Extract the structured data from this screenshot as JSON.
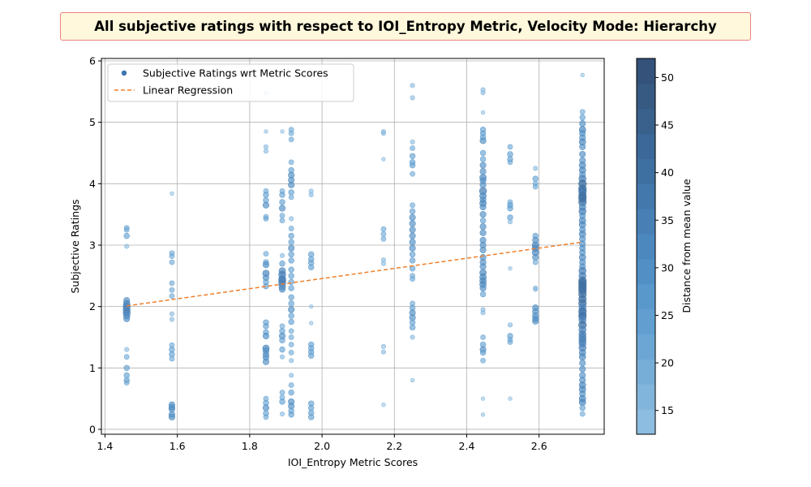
{
  "chart_data": {
    "type": "scatter",
    "title": "All subjective ratings with respect to IOI_Entropy Metric, Velocity Mode: Hierarchy",
    "xlabel": "IOI_Entropy Metric Scores",
    "ylabel": "Subjective Ratings",
    "xlim": [
      1.39,
      2.78
    ],
    "ylim": [
      -0.08,
      6.04
    ],
    "xticks": [
      1.4,
      1.6,
      1.8,
      2.0,
      2.2,
      2.4,
      2.6
    ],
    "xtick_labels": [
      "1.4",
      "1.6",
      "1.8",
      "2.0",
      "2.2",
      "2.4",
      "2.6"
    ],
    "yticks": [
      0,
      1,
      2,
      3,
      4,
      5,
      6
    ],
    "ytick_labels": [
      "0",
      "1",
      "2",
      "3",
      "4",
      "5",
      "6"
    ],
    "grid": true,
    "legend": {
      "placement": "top-left",
      "entries": [
        {
          "label": "Subjective Ratings wrt Metric Scores",
          "marker": "point",
          "color": "#3b75af"
        },
        {
          "label": "Linear Regression",
          "marker": "dashed-line",
          "color": "#f07f2a"
        }
      ]
    },
    "colorbar": {
      "label": "Distance from mean value",
      "range": [
        12.5,
        52
      ],
      "ticks": [
        15,
        20,
        25,
        30,
        35,
        40,
        45,
        50
      ],
      "tick_labels": [
        "15",
        "20",
        "25",
        "30",
        "35",
        "40",
        "45",
        "50"
      ],
      "colors": [
        "#8dbde0",
        "#82b5dc",
        "#77aed8",
        "#6ca6d4",
        "#629fd0",
        "#5998cb",
        "#528fc4",
        "#4c88be",
        "#4880b6",
        "#4378ac",
        "#3f70a2",
        "#3b6898",
        "#39618c",
        "#365a82",
        "#34527a"
      ]
    },
    "regression": {
      "x": [
        1.46,
        2.72
      ],
      "y": [
        2.01,
        3.05
      ],
      "color": "#f07f2a"
    },
    "series": [
      {
        "name": "Subjective Ratings wrt Metric Scores",
        "x_groups": [
          {
            "x": 1.46,
            "y": [
              3.28,
              3.25,
              3.15,
              2.98,
              2.1,
              2.05,
              2.0,
              1.95,
              1.9,
              1.85,
              1.8,
              1.3,
              1.18,
              1.0,
              0.88,
              0.8,
              0.76
            ]
          },
          {
            "x": 1.585,
            "y": [
              3.84,
              2.87,
              2.82,
              2.72,
              2.38,
              2.27,
              2.17,
              1.88,
              1.79,
              1.37,
              1.3,
              1.22,
              1.15,
              0.4,
              0.36,
              0.33,
              0.24,
              0.2
            ]
          },
          {
            "x": 1.845,
            "y": [
              5.48,
              4.85,
              4.6,
              4.53,
              3.88,
              3.82,
              3.73,
              3.65,
              3.46,
              3.43,
              2.86,
              2.72,
              2.68,
              2.54,
              2.47,
              2.4,
              2.33,
              1.74,
              1.68,
              1.58,
              1.52,
              1.32,
              1.28,
              1.22,
              1.17,
              1.1,
              0.5,
              0.43,
              0.35,
              0.26,
              0.2
            ]
          },
          {
            "x": 1.89,
            "y": [
              4.85,
              3.88,
              3.82,
              3.7,
              3.6,
              3.48,
              3.4,
              2.83,
              2.7,
              2.58,
              2.52,
              2.45,
              2.42,
              2.38,
              2.32,
              2.28,
              1.68,
              1.6,
              1.52,
              1.45,
              1.3,
              1.18,
              0.6,
              0.52,
              0.45,
              0.25
            ]
          },
          {
            "x": 1.915,
            "y": [
              4.88,
              4.82,
              4.72,
              4.35,
              4.22,
              4.14,
              4.06,
              3.98,
              3.86,
              3.78,
              3.43,
              3.27,
              3.15,
              3.05,
              2.95,
              2.85,
              2.75,
              2.6,
              2.5,
              2.4,
              2.3,
              2.15,
              2.05,
              1.95,
              1.85,
              1.75,
              1.6,
              1.5,
              1.38,
              1.25,
              1.12,
              0.88,
              0.72,
              0.6,
              0.45,
              0.38,
              0.3,
              0.24
            ]
          },
          {
            "x": 1.97,
            "y": [
              3.88,
              3.82,
              2.85,
              2.77,
              2.71,
              2.64,
              2.0,
              1.73,
              1.38,
              1.32,
              1.26,
              1.2,
              0.42,
              0.35,
              0.27,
              0.2
            ]
          },
          {
            "x": 2.17,
            "y": [
              4.85,
              4.82,
              4.4,
              3.26,
              3.18,
              3.1,
              2.76,
              2.7,
              1.35,
              1.26,
              0.4
            ]
          },
          {
            "x": 2.25,
            "y": [
              5.6,
              5.4,
              4.68,
              4.58,
              4.45,
              4.35,
              4.3,
              4.16,
              3.65,
              3.55,
              3.45,
              3.35,
              3.25,
              3.15,
              3.05,
              2.95,
              2.85,
              2.75,
              2.62,
              2.5,
              2.45,
              2.05,
              1.98,
              1.9,
              1.82,
              1.74,
              1.66,
              1.5,
              0.8
            ]
          },
          {
            "x": 2.445,
            "y": [
              5.53,
              5.48,
              5.16,
              4.88,
              4.82,
              4.76,
              4.7,
              4.5,
              4.4,
              4.3,
              4.2,
              4.1,
              4.05,
              3.98,
              3.88,
              3.8,
              3.74,
              3.68,
              3.62,
              3.5,
              3.4,
              3.3,
              3.2,
              3.08,
              3.0,
              2.92,
              2.8,
              2.72,
              2.65,
              2.55,
              2.48,
              2.42,
              2.36,
              2.3,
              2.2,
              1.95,
              1.9,
              1.5,
              1.38,
              1.3,
              1.25,
              1.12,
              0.5,
              0.24
            ]
          },
          {
            "x": 2.52,
            "y": [
              4.6,
              4.48,
              4.4,
              4.35,
              3.7,
              3.65,
              3.6,
              3.45,
              3.38,
              2.62,
              1.7,
              1.52,
              1.46,
              1.42,
              0.5
            ]
          },
          {
            "x": 2.59,
            "y": [
              4.25,
              4.08,
              4.0,
              3.95,
              3.15,
              3.08,
              3.0,
              2.95,
              2.88,
              2.8,
              2.72,
              2.3,
              2.28,
              1.98,
              1.92,
              1.85,
              1.8,
              1.76
            ]
          },
          {
            "x": 2.72,
            "y": [
              5.77,
              5.17,
              5.08,
              4.98,
              4.88,
              4.82,
              4.75,
              4.68,
              4.6,
              4.48,
              4.38,
              4.3,
              4.22,
              4.15,
              4.08,
              4.0,
              3.92,
              3.88,
              3.85,
              3.8,
              3.76,
              3.7,
              3.62,
              3.55,
              3.48,
              3.4,
              3.33,
              3.25,
              3.18,
              3.1,
              3.02,
              2.95,
              2.88,
              2.8,
              2.72,
              2.65,
              2.58,
              2.5,
              2.42,
              2.38,
              2.34,
              2.3,
              2.26,
              2.2,
              2.12,
              2.05,
              1.98,
              1.92,
              1.88,
              1.84,
              1.78,
              1.7,
              1.62,
              1.55,
              1.5,
              1.45,
              1.4,
              1.33,
              1.25,
              1.18,
              1.08,
              0.98,
              0.88,
              0.8,
              0.72,
              0.65,
              0.58,
              0.5,
              0.44,
              0.35,
              0.25
            ]
          }
        ]
      }
    ]
  }
}
